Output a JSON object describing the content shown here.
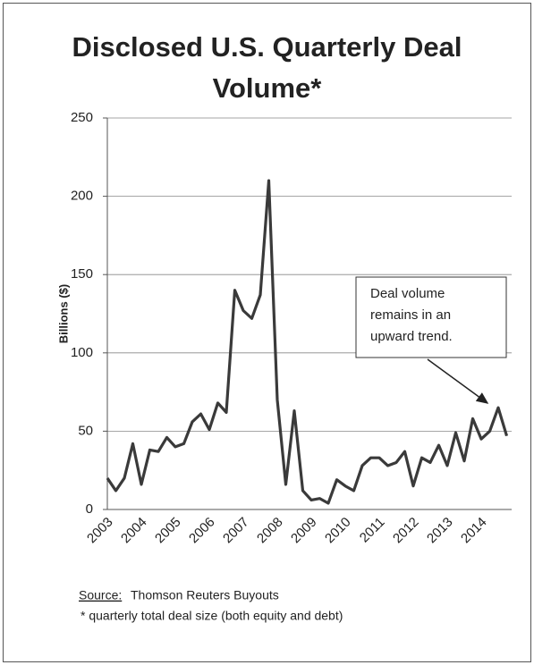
{
  "chart_data": {
    "type": "line",
    "title": "Disclosed U.S. Quarterly Deal Volume*",
    "y_label": "Billions ($)",
    "categories": [
      "2003",
      null,
      null,
      null,
      "2004",
      null,
      null,
      null,
      "2005",
      null,
      null,
      null,
      "2006",
      null,
      null,
      null,
      "2007",
      null,
      null,
      null,
      "2008",
      null,
      null,
      null,
      "2009",
      null,
      null,
      null,
      "2010",
      null,
      null,
      null,
      "2011",
      null,
      null,
      null,
      "2012",
      null,
      null,
      null,
      "2013",
      null,
      null,
      null,
      "2014",
      null,
      null,
      null
    ],
    "values": [
      20,
      12,
      20,
      42,
      16,
      38,
      37,
      46,
      40,
      42,
      56,
      61,
      51,
      68,
      62,
      140,
      127,
      122,
      137,
      210,
      70,
      16,
      63,
      12,
      6,
      7,
      4,
      19,
      15,
      12,
      28,
      33,
      33,
      28,
      30,
      37,
      15,
      33,
      30,
      41,
      28,
      49,
      31,
      58,
      45,
      50,
      65,
      47
    ],
    "color": "#3a3a3a",
    "ylim": [
      0,
      250
    ],
    "yticks": [
      0,
      50,
      100,
      150,
      200,
      250
    ],
    "grid": true,
    "annotation": [
      "Deal volume",
      "remains in an",
      "upward trend."
    ],
    "source_label": "Source:",
    "source": "Thomson Reuters Buyouts",
    "note": "* quarterly total deal size (both equity and debt)"
  }
}
